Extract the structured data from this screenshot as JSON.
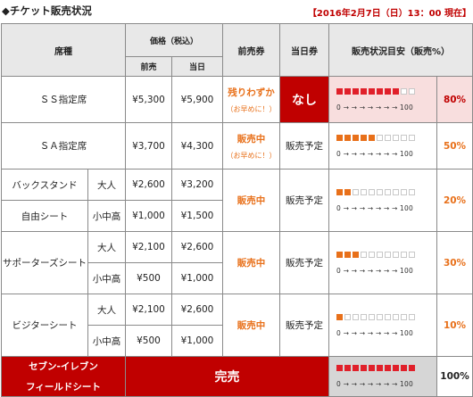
{
  "header": {
    "title": "◆チケット販売状況",
    "timestamp": "【2016年2月7日（日）13：00 現在】"
  },
  "columns": {
    "seat": "席種",
    "price": "価格（税込）",
    "advance": "前売",
    "sameday": "当日",
    "advance_ticket": "前売券",
    "sameday_ticket": "当日券",
    "status": "販売状況目安（販売%）"
  },
  "scale_text": "0 → → → → → → → 100",
  "rows": {
    "ss": {
      "name": "ＳＳ指定席",
      "advance": "¥5,300",
      "sameday": "¥5,900",
      "advance_status": "残りわずか",
      "advance_note": "（お早めに！）",
      "sameday_status": "なし",
      "percent": "80%",
      "filled": 8
    },
    "sa": {
      "name": "ＳＡ指定席",
      "advance": "¥3,700",
      "sameday": "¥4,300",
      "advance_status": "販売中",
      "advance_note": "（お早めに！）",
      "sameday_status": "販売予定",
      "percent": "50%",
      "filled": 5
    },
    "back": {
      "name1": "バックスタンド",
      "name2": "自由シート",
      "adult": "大人",
      "child": "小中高",
      "adult_adv": "¥2,600",
      "adult_day": "¥3,200",
      "child_adv": "¥1,000",
      "child_day": "¥1,500",
      "advance_status": "販売中",
      "sameday_status": "販売予定",
      "percent": "20%",
      "filled": 2
    },
    "supporter": {
      "name": "サポーターズシート",
      "adult": "大人",
      "child": "小中高",
      "adult_adv": "¥2,100",
      "adult_day": "¥2,600",
      "child_adv": "¥500",
      "child_day": "¥1,000",
      "advance_status": "販売中",
      "sameday_status": "販売予定",
      "percent": "30%",
      "filled": 3
    },
    "visitor": {
      "name": "ビジターシート",
      "adult": "大人",
      "child": "小中高",
      "adult_adv": "¥2,100",
      "adult_day": "¥2,600",
      "child_adv": "¥500",
      "child_day": "¥1,000",
      "advance_status": "販売中",
      "sameday_status": "販売予定",
      "percent": "10%",
      "filled": 1
    },
    "seven": {
      "name1": "セブン‐イレブン",
      "name2": "フィールドシート",
      "status": "完売",
      "percent": "100%",
      "filled": 10
    }
  },
  "colors": {
    "red": "#c00000",
    "orange": "#e8701a",
    "bar_red": "#e0202a",
    "pink": "#f8dede",
    "grey": "#d6d6d6"
  }
}
